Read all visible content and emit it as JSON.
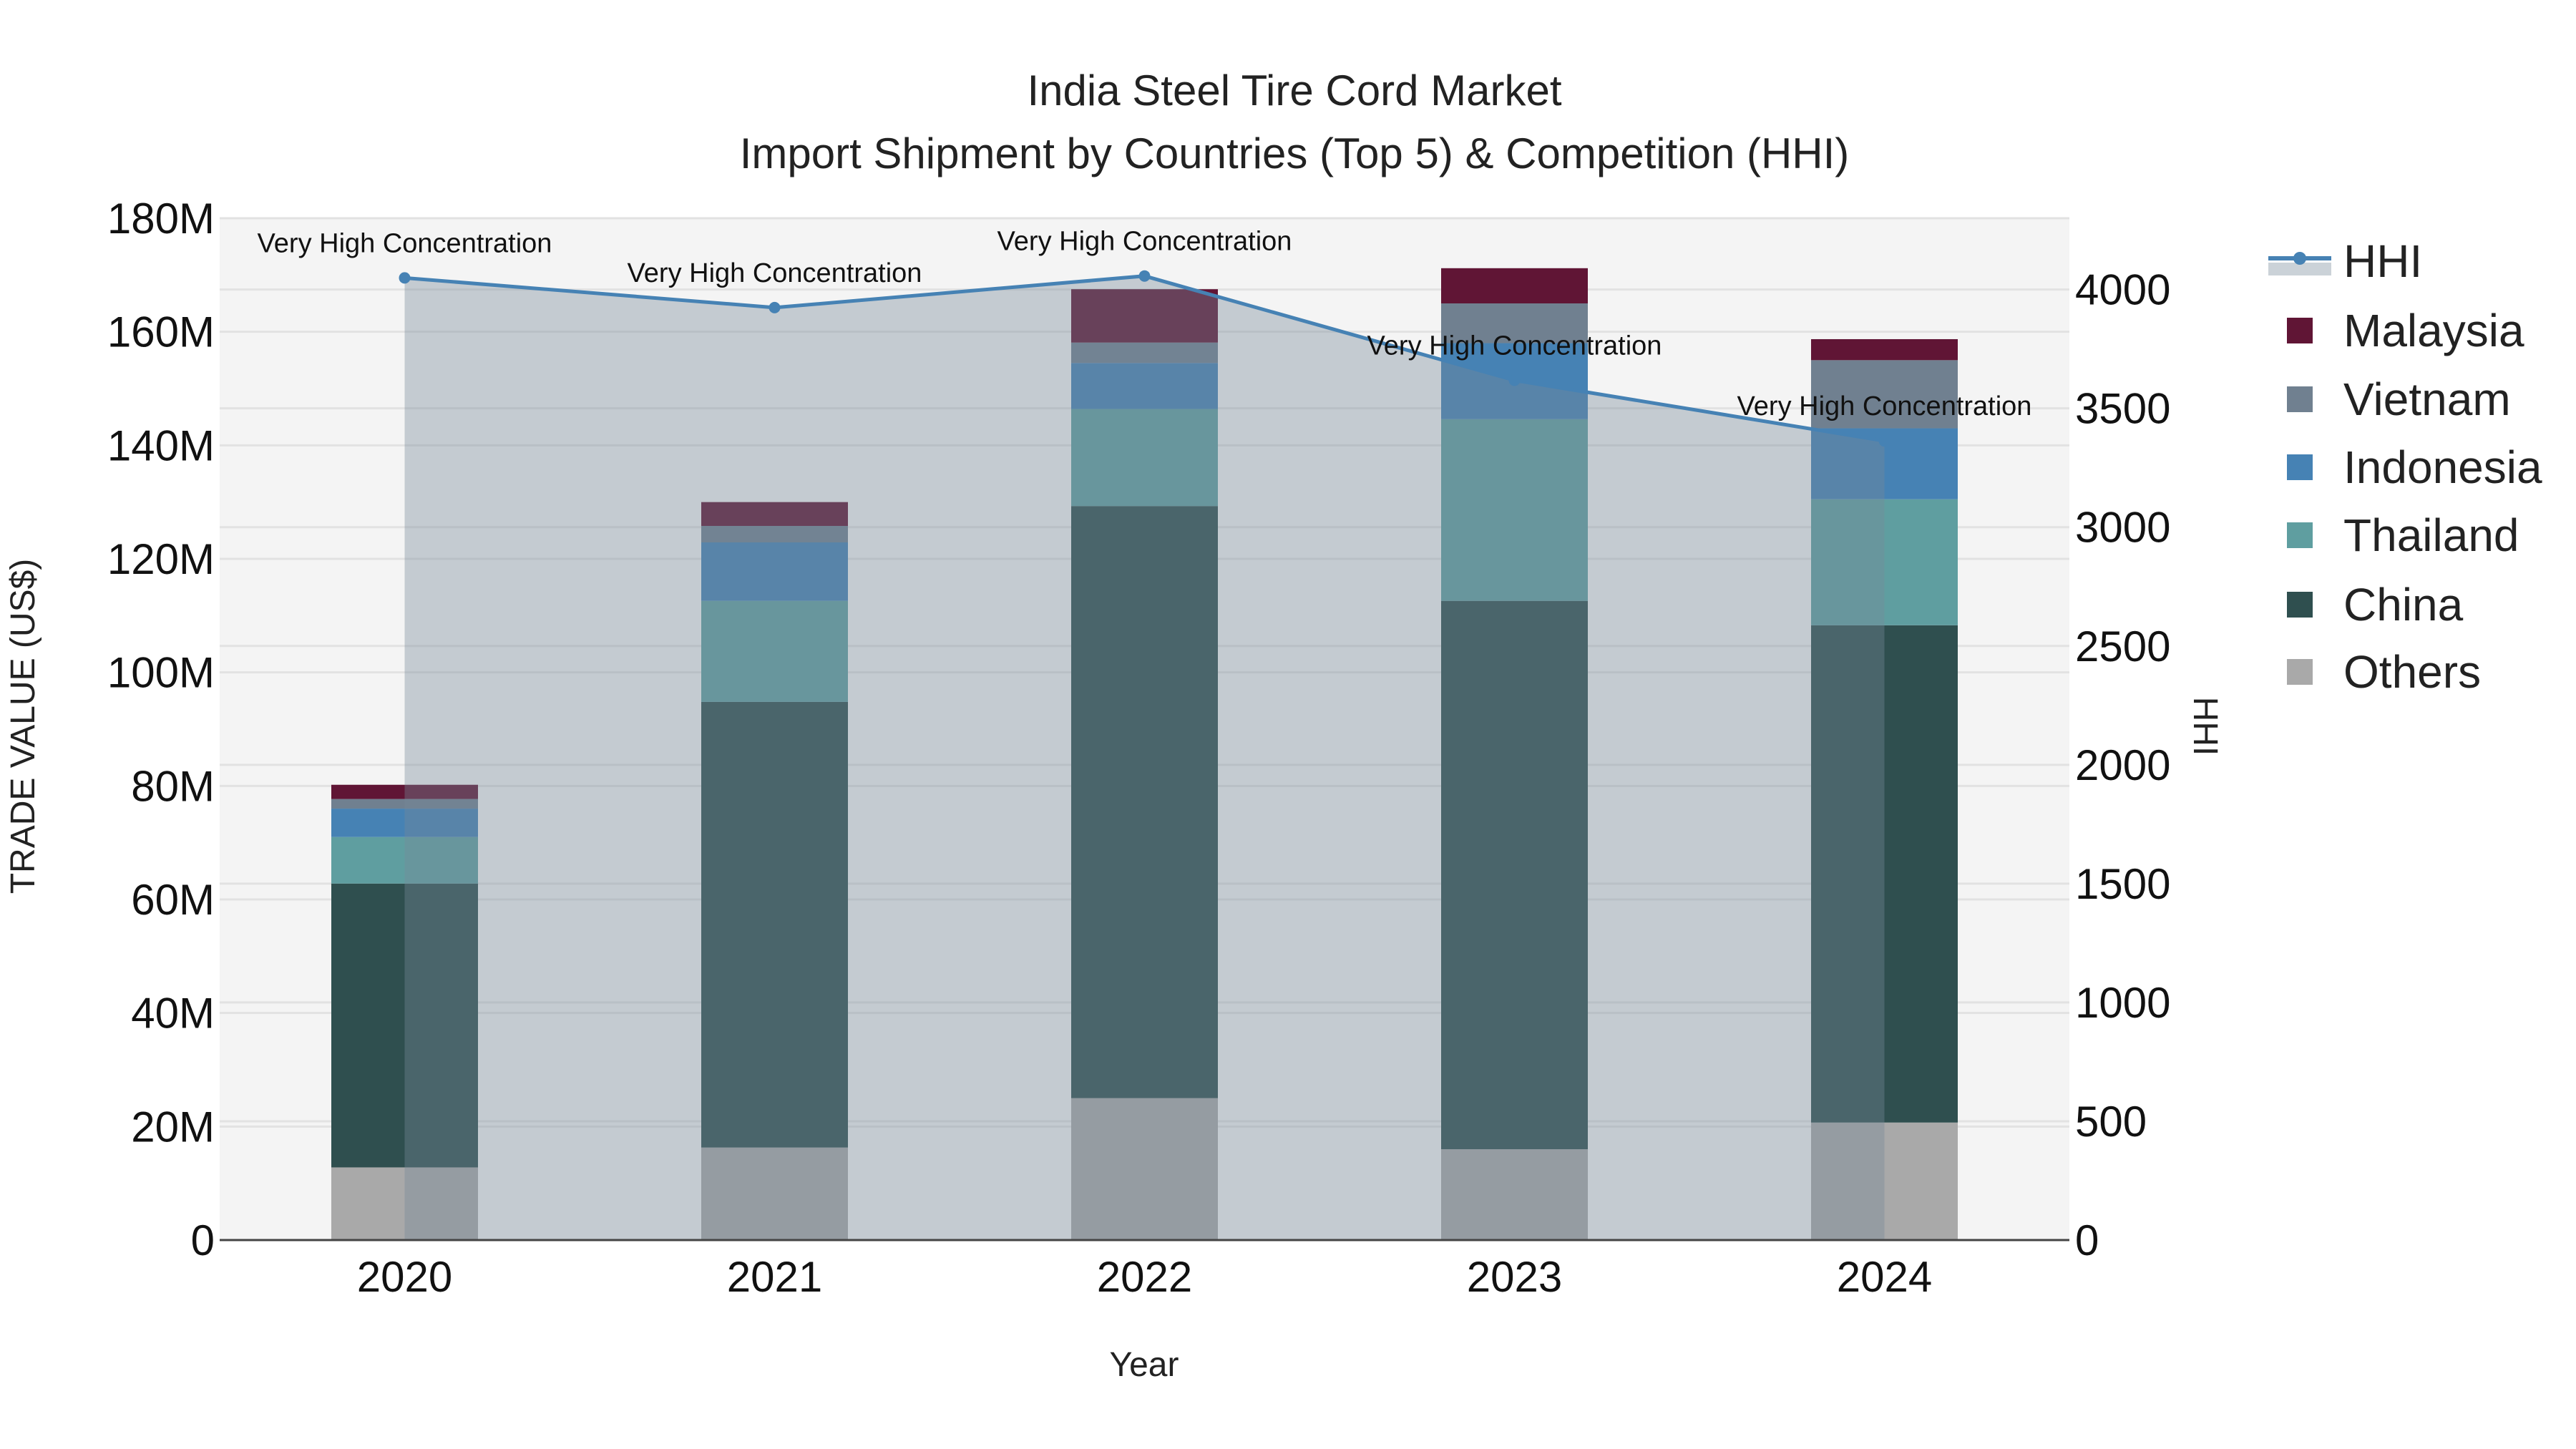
{
  "chart_data": {
    "type": "bar",
    "stacked": true,
    "title": "India Steel Tire Cord Market",
    "subtitle": "Import Shipment by Countries (Top 5) & Competition (HHI)",
    "xlabel": "Year",
    "ylabel": "TRADE VALUE (US$)",
    "y2label": "HHI",
    "categories": [
      "2020",
      "2021",
      "2022",
      "2023",
      "2024"
    ],
    "ylim": [
      0,
      180000000
    ],
    "y2lim": [
      0,
      4300
    ],
    "yticks": [
      0,
      20000000,
      40000000,
      60000000,
      80000000,
      100000000,
      120000000,
      140000000,
      160000000,
      180000000
    ],
    "ytick_labels": [
      "0",
      "20M",
      "40M",
      "60M",
      "80M",
      "100M",
      "120M",
      "140M",
      "160M",
      "180M"
    ],
    "y2ticks": [
      0,
      500,
      1000,
      1500,
      2000,
      2500,
      3000,
      3500,
      4000
    ],
    "y2tick_labels": [
      "0",
      "500",
      "1000",
      "1500",
      "2000",
      "2500",
      "3000",
      "3500",
      "4000"
    ],
    "grid": true,
    "legend_position": "right",
    "series": [
      {
        "name": "Others",
        "color": "#a9a9a9",
        "values": [
          12.8,
          16.3,
          25.0,
          16.0,
          20.7
        ]
      },
      {
        "name": "China",
        "color": "#2f4f4f",
        "values": [
          50.0,
          78.5,
          104.3,
          96.6,
          87.6
        ]
      },
      {
        "name": "Thailand",
        "color": "#5f9ea0",
        "values": [
          8.2,
          17.8,
          17.1,
          32.0,
          22.2
        ]
      },
      {
        "name": "Indonesia",
        "color": "#4682b4",
        "values": [
          5.0,
          10.3,
          8.1,
          13.4,
          12.5
        ]
      },
      {
        "name": "Vietnam",
        "color": "#708090",
        "values": [
          1.7,
          2.9,
          3.6,
          7.0,
          12.0
        ]
      },
      {
        "name": "Malaysia",
        "color": "#601535",
        "values": [
          2.5,
          4.2,
          9.4,
          6.2,
          3.7
        ]
      }
    ],
    "value_unit": "million US$",
    "line": {
      "name": "HHI",
      "color": "#4682b4",
      "values": [
        4049,
        3924,
        4057,
        3618,
        3363
      ],
      "annotations": [
        "Very High Concentration",
        "Very High Concentration",
        "Very High Concentration",
        "Very High Concentration",
        "Very High Concentration"
      ]
    },
    "legend_order": [
      "HHI",
      "Malaysia",
      "Vietnam",
      "Indonesia",
      "Thailand",
      "China",
      "Others"
    ]
  }
}
